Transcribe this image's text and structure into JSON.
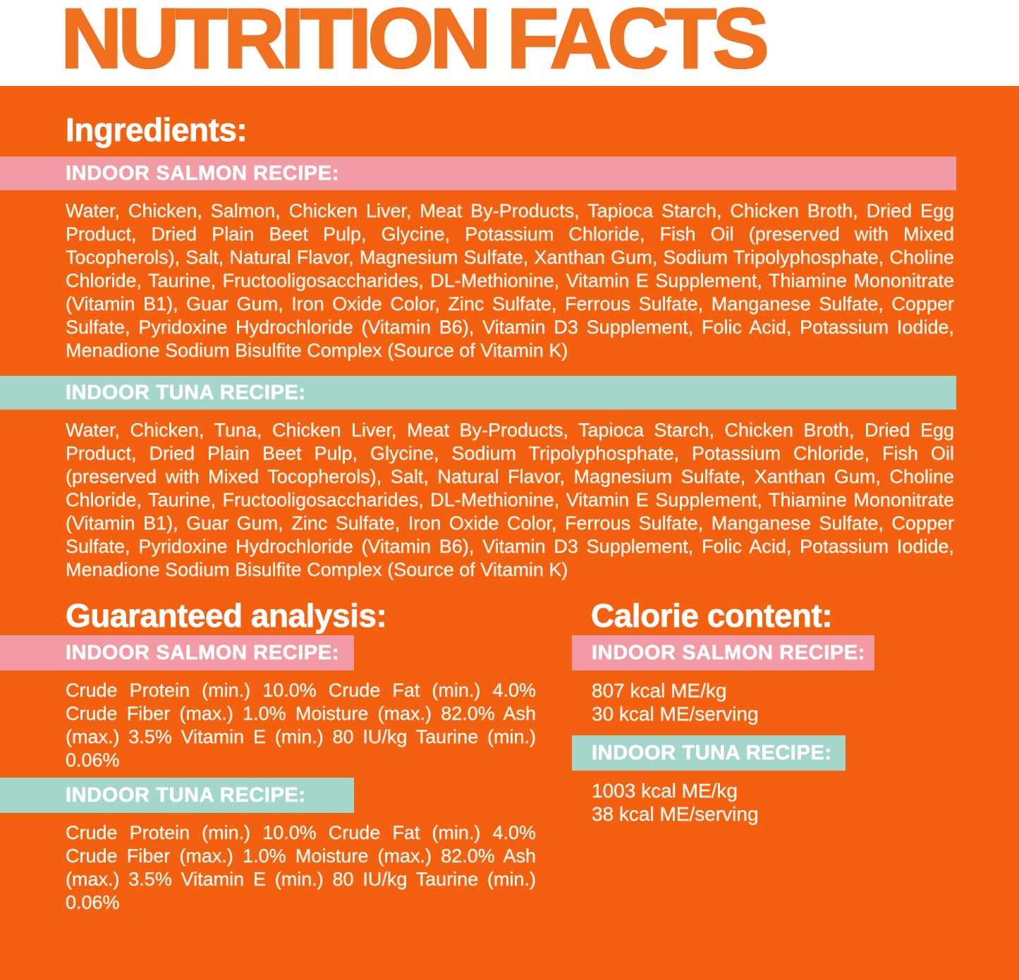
{
  "header": {
    "title": "NUTRITION FACTS"
  },
  "colors": {
    "background_orange": "#F3600F",
    "title_orange": "#EF7120",
    "banner_pink": "#F29BA4",
    "banner_teal": "#A5D6CB",
    "text_white": "#FEF5EC"
  },
  "ingredients": {
    "heading": "Ingredients:",
    "sections": [
      {
        "banner": "INDOOR SALMON RECIPE:",
        "theme": "pink",
        "text": "Water, Chicken, Salmon, Chicken Liver, Meat By-Products, Tapioca Starch, Chicken Broth, Dried Egg Product, Dried Plain Beet Pulp, Glycine, Potassium Chloride, Fish Oil (preserved with Mixed Tocopherols), Salt, Natural Flavor, Magnesium Sulfate, Xanthan Gum, Sodium Tripolyphosphate, Choline Chloride, Taurine, Fructooligosaccharides, DL-Methionine, Vitamin E Supplement, Thiamine Mononitrate (Vitamin B1), Guar Gum, Iron Oxide Color, Zinc Sulfate, Ferrous Sulfate, Manganese Sulfate, Copper Sulfate, Pyridoxine Hydrochloride (Vitamin B6), Vitamin D3 Supplement, Folic Acid, Potassium Iodide, Menadione Sodium Bisulfite Complex (Source of Vitamin K)"
      },
      {
        "banner": "INDOOR TUNA RECIPE:",
        "theme": "teal",
        "text": "Water, Chicken, Tuna, Chicken Liver, Meat By-Products, Tapioca Starch, Chicken Broth, Dried Egg Product, Dried Plain Beet Pulp, Glycine, Sodium Tripolyphosphate, Potassium Chloride, Fish Oil (preserved with Mixed Tocopherols), Salt, Natural Flavor, Magnesium Sulfate, Xanthan Gum, Choline Chloride, Taurine, Fructooligosaccharides, DL-Methionine, Vitamin E Supplement, Thiamine Mononitrate (Vitamin B1), Guar Gum, Zinc Sulfate, Iron Oxide Color, Ferrous Sulfate, Manganese Sulfate, Copper Sulfate, Pyridoxine Hydrochloride (Vitamin B6), Vitamin D3 Supplement, Folic Acid, Potassium Iodide, Menadione Sodium Bisulfite Complex (Source of Vitamin K)"
      }
    ]
  },
  "guaranteed_analysis": {
    "heading": "Guaranteed analysis:",
    "sections": [
      {
        "banner": "INDOOR SALMON RECIPE:",
        "theme": "pink",
        "text": "Crude Protein (min.) 10.0% Crude Fat (min.) 4.0% Crude Fiber (max.) 1.0% Moisture (max.) 82.0% Ash (max.) 3.5% Vitamin E (min.) 80 IU/kg Taurine (min.) 0.06%"
      },
      {
        "banner": "INDOOR TUNA RECIPE:",
        "theme": "teal",
        "text": "Crude Protein (min.) 10.0% Crude Fat (min.) 4.0% Crude Fiber (max.) 1.0% Moisture (max.) 82.0% Ash (max.) 3.5% Vitamin E (min.) 80 IU/kg Taurine (min.) 0.06%"
      }
    ]
  },
  "calorie_content": {
    "heading": "Calorie content:",
    "sections": [
      {
        "banner": "INDOOR SALMON RECIPE:",
        "theme": "pink",
        "lines": [
          "807 kcal ME/kg",
          "30 kcal ME/serving"
        ]
      },
      {
        "banner": "INDOOR TUNA RECIPE:",
        "theme": "teal",
        "lines": [
          "1003 kcal ME/kg",
          "38 kcal ME/serving"
        ]
      }
    ]
  }
}
